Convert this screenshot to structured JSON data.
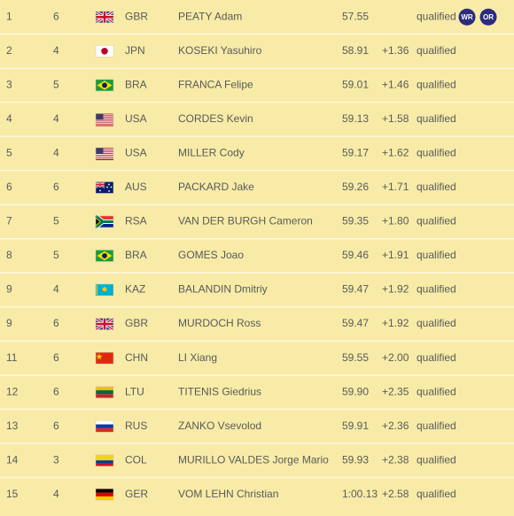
{
  "table": {
    "rows": [
      {
        "rank": 1,
        "heat": 6,
        "country": "GBR",
        "name": "PEATY Adam",
        "time": "57.55",
        "status": "qualified",
        "badges": [
          "WR",
          "OR"
        ]
      },
      {
        "rank": 2,
        "heat": 4,
        "country": "JPN",
        "name": "KOSEKI Yasuhiro",
        "time": "58.91",
        "diff": "+1.36",
        "status": "qualified"
      },
      {
        "rank": 3,
        "heat": 5,
        "country": "BRA",
        "name": "FRANCA Felipe",
        "time": "59.01",
        "diff": "+1.46",
        "status": "qualified"
      },
      {
        "rank": 4,
        "heat": 4,
        "country": "USA",
        "name": "CORDES Kevin",
        "time": "59.13",
        "diff": "+1.58",
        "status": "qualified"
      },
      {
        "rank": 5,
        "heat": 4,
        "country": "USA",
        "name": "MILLER Cody",
        "time": "59.17",
        "diff": "+1.62",
        "status": "qualified"
      },
      {
        "rank": 6,
        "heat": 6,
        "country": "AUS",
        "name": "PACKARD Jake",
        "time": "59.26",
        "diff": "+1.71",
        "status": "qualified"
      },
      {
        "rank": 7,
        "heat": 5,
        "country": "RSA",
        "name": "VAN DER BURGH Cameron",
        "time": "59.35",
        "diff": "+1.80",
        "status": "qualified"
      },
      {
        "rank": 8,
        "heat": 5,
        "country": "BRA",
        "name": "GOMES Joao",
        "time": "59.46",
        "diff": "+1.91",
        "status": "qualified"
      },
      {
        "rank": 9,
        "heat": 4,
        "country": "KAZ",
        "name": "BALANDIN Dmitriy",
        "time": "59.47",
        "diff": "+1.92",
        "status": "qualified"
      },
      {
        "rank": 9,
        "heat": 6,
        "country": "GBR",
        "name": "MURDOCH Ross",
        "time": "59.47",
        "diff": "+1.92",
        "status": "qualified"
      },
      {
        "rank": 11,
        "heat": 6,
        "country": "CHN",
        "name": "LI Xiang",
        "time": "59.55",
        "diff": "+2.00",
        "status": "qualified"
      },
      {
        "rank": 12,
        "heat": 6,
        "country": "LTU",
        "name": "TITENIS Giedrius",
        "time": "59.90",
        "diff": "+2.35",
        "status": "qualified"
      },
      {
        "rank": 13,
        "heat": 6,
        "country": "RUS",
        "name": "ZANKO Vsevolod",
        "time": "59.91",
        "diff": "+2.36",
        "status": "qualified"
      },
      {
        "rank": 14,
        "heat": 3,
        "country": "COL",
        "name": "MURILLO VALDES Jorge Mario",
        "time": "59.93",
        "diff": "+2.38",
        "status": "qualified"
      },
      {
        "rank": 15,
        "heat": 4,
        "country": "GER",
        "name": "VOM LEHN Christian",
        "time": "1:00.13",
        "diff": "+2.58",
        "status": "qualified"
      }
    ]
  }
}
